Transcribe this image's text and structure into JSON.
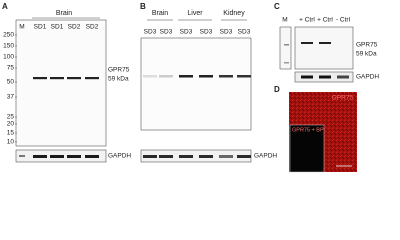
{
  "panels": [
    {
      "label": "A",
      "group": "Brain",
      "lanes": [
        "M",
        "SD1",
        "SD1",
        "SD2",
        "SD2"
      ],
      "markers": [
        250,
        150,
        100,
        75,
        50,
        37,
        25,
        20,
        15,
        10
      ],
      "target": "GPR75",
      "size": "59 kDa",
      "control": "GAPDH"
    },
    {
      "label": "B",
      "groups": [
        "Brain",
        "Liver",
        "Kidney"
      ],
      "lanes": [
        "SD3",
        "SD3",
        "SD3",
        "SD3",
        "SD3",
        "SD3"
      ],
      "control": "GAPDH"
    },
    {
      "label": "C",
      "lanes": [
        "M",
        "+ Ctrl",
        "+ Ctrl",
        "- Ctrl"
      ],
      "target": "GPR75",
      "size": "59 kDa",
      "control": "GAPDH"
    },
    {
      "label": "D",
      "stain": "GPR75",
      "inset": "GPR75 + BP"
    }
  ]
}
